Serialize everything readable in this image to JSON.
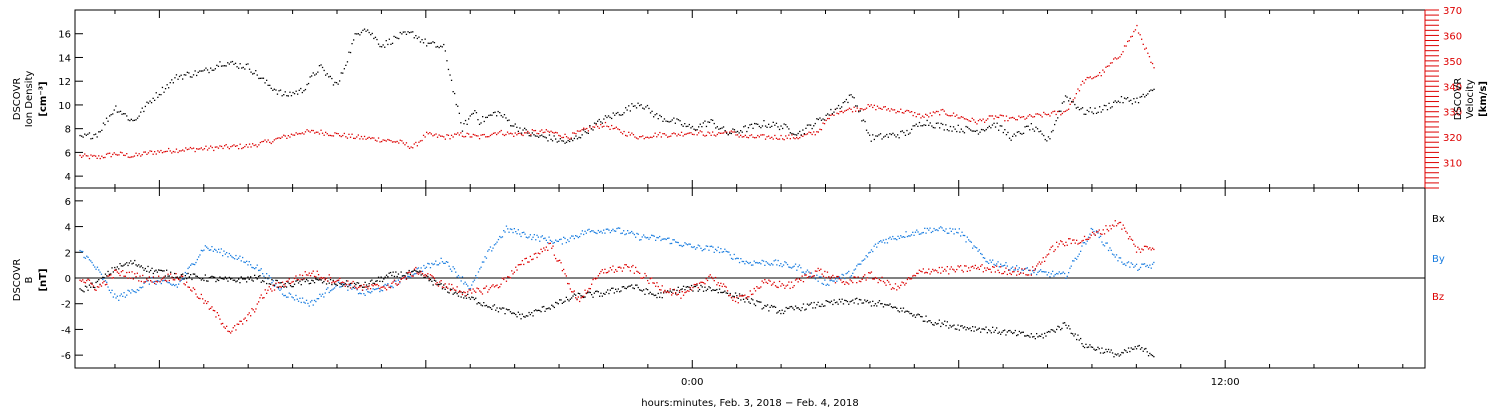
{
  "chart_data": [
    {
      "type": "scatter",
      "panel": "top",
      "ylabel_left": [
        "DSCOVR",
        "Ion Density",
        "[cm⁻³]"
      ],
      "ylabel_right": [
        "DSCOVR",
        "Velocity",
        "[km/s]"
      ],
      "ylim_left": [
        3,
        18
      ],
      "yticks_left": [
        4,
        6,
        8,
        10,
        12,
        14,
        16
      ],
      "ylim_right": [
        300,
        370
      ],
      "yticks_right": [
        310,
        320,
        330,
        340,
        350,
        360,
        370
      ],
      "x_unit": "hours relative to 2018-02-04 00:00",
      "xlim": [
        -13.9,
        16.5
      ],
      "data_end": 10.5,
      "colors": {
        "density": "#000000",
        "velocity": "#dd0000"
      },
      "series": [
        {
          "key": "density",
          "axis": "left",
          "x": [
            -13.8,
            -13.4,
            -13.0,
            -12.6,
            -12.2,
            -11.6,
            -11.0,
            -10.6,
            -10.0,
            -9.6,
            -9.2,
            -8.8,
            -8.4,
            -8.0,
            -7.6,
            -7.4,
            -7.0,
            -6.6,
            -6.3,
            -6.0,
            -5.6,
            -5.2,
            -4.9,
            -4.8,
            -4.4,
            -4.0,
            -3.6,
            -3.2,
            -2.8,
            -2.4,
            -2.0,
            -1.6,
            -1.2,
            -0.8,
            -0.4,
            0.0,
            0.4,
            0.8,
            1.2,
            1.6,
            2.0,
            2.4,
            2.8,
            3.2,
            3.6,
            4.0,
            4.4,
            4.8,
            5.2,
            5.6,
            6.0,
            6.4,
            6.8,
            7.2,
            7.6,
            8.0,
            8.4,
            8.8,
            9.2,
            9.6,
            10.0,
            10.4
          ],
          "y": [
            7.2,
            7.6,
            9.8,
            8.6,
            10.4,
            12.4,
            12.8,
            13.6,
            13.2,
            11.8,
            10.8,
            11.2,
            13.2,
            11.6,
            15.8,
            16.6,
            15.0,
            15.8,
            16.0,
            15.2,
            14.8,
            8.0,
            9.6,
            8.6,
            9.4,
            8.2,
            7.4,
            7.2,
            6.8,
            7.8,
            8.8,
            9.4,
            10.2,
            9.0,
            8.6,
            8.0,
            8.6,
            7.6,
            8.0,
            8.4,
            8.2,
            7.6,
            8.6,
            9.6,
            10.8,
            7.2,
            7.4,
            7.6,
            8.6,
            8.2,
            8.0,
            7.8,
            8.4,
            7.2,
            8.2,
            7.0,
            10.8,
            9.4,
            9.6,
            10.4,
            10.4,
            11.2
          ]
        },
        {
          "key": "velocity",
          "axis": "right",
          "x": [
            -13.8,
            -13.4,
            -13.0,
            -12.6,
            -12.2,
            -11.6,
            -11.0,
            -10.6,
            -10.0,
            -9.6,
            -9.2,
            -8.8,
            -8.4,
            -8.0,
            -7.6,
            -7.0,
            -6.6,
            -6.3,
            -6.0,
            -5.6,
            -5.2,
            -4.8,
            -4.4,
            -4.0,
            -3.6,
            -3.2,
            -2.8,
            -2.4,
            -2.0,
            -1.6,
            -1.2,
            -0.8,
            -0.4,
            0.0,
            0.4,
            0.8,
            1.2,
            1.6,
            2.0,
            2.4,
            2.8,
            3.2,
            3.6,
            4.0,
            4.4,
            4.8,
            5.2,
            5.6,
            6.0,
            6.4,
            6.8,
            7.2,
            7.6,
            8.0,
            8.4,
            8.8,
            9.2,
            9.6,
            10.0,
            10.4
          ],
          "y": [
            312.5,
            312,
            313.5,
            312.5,
            314,
            315,
            315.5,
            316,
            316.5,
            318,
            320,
            322,
            322,
            321,
            320,
            319,
            318,
            316,
            321,
            320,
            321,
            320,
            322,
            321,
            322,
            322,
            320,
            323,
            325,
            322,
            320,
            321,
            321,
            322,
            321,
            322,
            320,
            320,
            320,
            320,
            322,
            330,
            331,
            332,
            331,
            330,
            328,
            330,
            328,
            326,
            328,
            327,
            328,
            329,
            330,
            342,
            345,
            352,
            363,
            346
          ]
        }
      ]
    },
    {
      "type": "scatter",
      "panel": "bottom",
      "ylabel_left": [
        "DSCOVR",
        "B",
        "[nT]"
      ],
      "ylim": [
        -7,
        7
      ],
      "yticks": [
        -6,
        -4,
        -2,
        0,
        2,
        4,
        6
      ],
      "zero_line": true,
      "xlim": [
        -13.9,
        16.5
      ],
      "data_end": 10.5,
      "xticks": [
        0,
        12
      ],
      "xtick_labels": [
        "0:00",
        "12:00"
      ],
      "xlabel": "hours:minutes, Feb.  3, 2018 − Feb.  4, 2018",
      "legend": [
        "Bx",
        "By",
        "Bz"
      ],
      "legend_placement": "right",
      "colors": {
        "Bx": "#000000",
        "By": "#1a7de0",
        "Bz": "#dd0000"
      },
      "series": [
        {
          "key": "Bx",
          "name": "Bx",
          "x": [
            -13.8,
            -13.4,
            -13.0,
            -12.6,
            -12.2,
            -11.6,
            -11.0,
            -10.4,
            -9.8,
            -9.2,
            -8.6,
            -8.0,
            -7.4,
            -6.8,
            -6.2,
            -5.6,
            -5.0,
            -4.4,
            -3.8,
            -3.2,
            -2.6,
            -2.0,
            -1.4,
            -0.8,
            -0.2,
            0.4,
            1.0,
            1.6,
            2.0,
            2.4,
            3.0,
            3.6,
            4.2,
            4.8,
            5.4,
            6.0,
            6.6,
            7.2,
            7.8,
            8.4,
            8.8,
            9.2,
            9.6,
            10.0,
            10.4
          ],
          "y": [
            -1.0,
            -0.4,
            0.8,
            1.2,
            0.6,
            0.2,
            0.0,
            -0.2,
            0.0,
            -0.6,
            -0.2,
            -0.4,
            -0.6,
            0.2,
            0.4,
            -0.8,
            -1.6,
            -2.4,
            -3.0,
            -2.2,
            -1.4,
            -1.2,
            -0.6,
            -1.4,
            -0.8,
            -0.8,
            -1.4,
            -2.2,
            -2.6,
            -2.3,
            -2.0,
            -1.8,
            -2.0,
            -2.6,
            -3.4,
            -3.8,
            -4.0,
            -4.3,
            -4.6,
            -3.6,
            -5.2,
            -5.6,
            -6.0,
            -5.4,
            -6.0
          ]
        },
        {
          "key": "By",
          "name": "By",
          "x": [
            -13.8,
            -13.4,
            -13.0,
            -12.6,
            -12.2,
            -11.6,
            -11.0,
            -10.4,
            -9.8,
            -9.2,
            -8.6,
            -8.0,
            -7.4,
            -6.8,
            -6.2,
            -5.6,
            -5.0,
            -4.6,
            -4.2,
            -3.6,
            -3.0,
            -2.4,
            -1.8,
            -1.2,
            -0.6,
            0.0,
            0.6,
            1.2,
            1.8,
            2.4,
            3.0,
            3.6,
            4.2,
            4.8,
            5.4,
            6.0,
            6.6,
            7.2,
            7.8,
            8.4,
            9.0,
            9.6,
            10.0,
            10.4
          ],
          "y": [
            2.2,
            0.6,
            -1.6,
            -1.0,
            -0.2,
            -0.6,
            2.4,
            1.8,
            0.8,
            -1.2,
            -2.0,
            -0.4,
            -1.2,
            -0.6,
            0.6,
            1.4,
            -0.8,
            2.0,
            3.8,
            3.2,
            2.8,
            3.6,
            3.8,
            3.2,
            3.0,
            2.4,
            2.2,
            1.2,
            1.2,
            0.8,
            -0.4,
            0.4,
            2.8,
            3.4,
            3.8,
            3.6,
            1.4,
            0.8,
            0.4,
            0.2,
            3.8,
            1.4,
            0.8,
            1.0
          ]
        },
        {
          "key": "Bz",
          "name": "Bz",
          "x": [
            -13.8,
            -13.4,
            -13.0,
            -12.6,
            -12.2,
            -11.6,
            -11.0,
            -10.4,
            -10.0,
            -9.6,
            -9.2,
            -8.6,
            -8.0,
            -7.4,
            -6.8,
            -6.2,
            -5.6,
            -5.0,
            -4.4,
            -3.8,
            -3.2,
            -2.6,
            -2.0,
            -1.4,
            -0.8,
            -0.2,
            0.4,
            1.0,
            1.6,
            2.2,
            2.8,
            3.4,
            4.0,
            4.6,
            5.2,
            5.8,
            6.4,
            7.0,
            7.6,
            8.2,
            8.8,
            9.2,
            9.6,
            10.0,
            10.4
          ],
          "y": [
            0.0,
            -0.8,
            0.4,
            0.2,
            -0.2,
            0.2,
            -1.8,
            -4.2,
            -3.0,
            -1.0,
            -0.4,
            0.4,
            -0.2,
            -0.8,
            -0.6,
            0.6,
            -0.6,
            -1.2,
            -0.6,
            1.2,
            2.6,
            -1.8,
            0.6,
            0.8,
            -0.6,
            -1.4,
            0.2,
            -1.8,
            -0.4,
            -0.6,
            0.6,
            -0.4,
            0.2,
            -0.8,
            0.6,
            0.6,
            0.8,
            0.6,
            0.4,
            2.6,
            3.0,
            3.6,
            4.4,
            2.2,
            2.4
          ]
        }
      ]
    }
  ]
}
